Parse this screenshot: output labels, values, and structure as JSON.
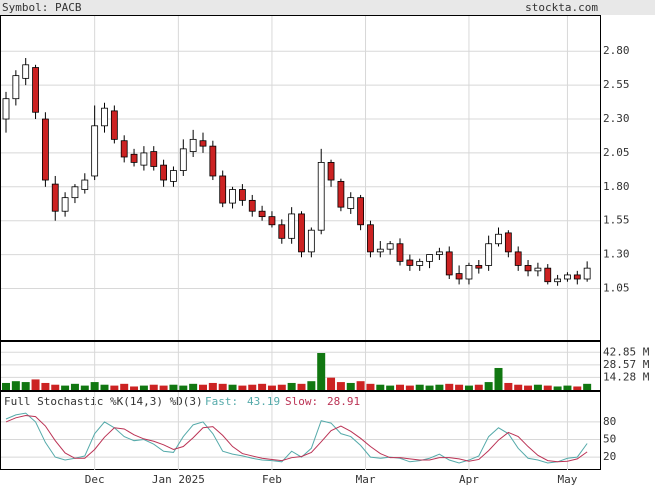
{
  "chart_data": {
    "type": "candlestick",
    "symbol": "Symbol: PACB",
    "site": "stockta.com",
    "x_labels": [
      {
        "index": 9,
        "label": "Dec"
      },
      {
        "index": 17.5,
        "label": "Jan 2025"
      },
      {
        "index": 27,
        "label": "Feb"
      },
      {
        "index": 36.5,
        "label": "Mar"
      },
      {
        "index": 47,
        "label": "Apr"
      },
      {
        "index": 57,
        "label": "May"
      }
    ],
    "open": [
      2.3,
      2.45,
      2.6,
      2.68,
      2.3,
      1.82,
      1.62,
      1.72,
      1.78,
      1.88,
      2.25,
      2.36,
      2.14,
      2.04,
      1.96,
      2.06,
      1.96,
      1.84,
      1.92,
      2.06,
      2.14,
      2.1,
      1.88,
      1.68,
      1.78,
      1.7,
      1.62,
      1.58,
      1.52,
      1.42,
      1.6,
      1.32,
      1.48,
      1.98,
      1.84,
      1.64,
      1.72,
      1.52,
      1.32,
      1.34,
      1.38,
      1.26,
      1.22,
      1.25,
      1.3,
      1.32,
      1.16,
      1.12,
      1.22,
      1.22,
      1.38,
      1.46,
      1.32,
      1.22,
      1.18,
      1.2,
      1.1,
      1.12,
      1.15,
      1.12
    ],
    "high": [
      2.5,
      2.66,
      2.75,
      2.7,
      2.35,
      1.88,
      1.76,
      1.82,
      1.9,
      2.4,
      2.42,
      2.4,
      2.18,
      2.08,
      2.1,
      2.1,
      2.0,
      1.95,
      2.15,
      2.22,
      2.2,
      2.14,
      1.92,
      1.8,
      1.82,
      1.74,
      1.66,
      1.62,
      1.56,
      1.65,
      1.62,
      1.5,
      2.08,
      2.0,
      1.86,
      1.76,
      1.74,
      1.55,
      1.4,
      1.4,
      1.42,
      1.3,
      1.27,
      1.3,
      1.35,
      1.36,
      1.22,
      1.24,
      1.26,
      1.44,
      1.5,
      1.48,
      1.36,
      1.26,
      1.24,
      1.23,
      1.15,
      1.17,
      1.18,
      1.25
    ],
    "low": [
      2.2,
      2.4,
      2.55,
      2.3,
      1.8,
      1.55,
      1.58,
      1.68,
      1.75,
      1.85,
      2.2,
      2.12,
      1.98,
      1.95,
      1.92,
      1.92,
      1.8,
      1.8,
      1.88,
      2.02,
      2.05,
      1.85,
      1.65,
      1.64,
      1.66,
      1.58,
      1.55,
      1.5,
      1.38,
      1.38,
      1.28,
      1.28,
      1.45,
      1.8,
      1.62,
      1.6,
      1.48,
      1.28,
      1.28,
      1.3,
      1.22,
      1.18,
      1.18,
      1.2,
      1.26,
      1.12,
      1.08,
      1.08,
      1.16,
      1.18,
      1.36,
      1.28,
      1.18,
      1.14,
      1.14,
      1.08,
      1.07,
      1.1,
      1.08,
      1.1
    ],
    "close": [
      2.45,
      2.62,
      2.7,
      2.35,
      1.85,
      1.62,
      1.72,
      1.8,
      1.85,
      2.25,
      2.38,
      2.15,
      2.02,
      1.98,
      2.05,
      1.95,
      1.85,
      1.92,
      2.08,
      2.15,
      2.1,
      1.88,
      1.68,
      1.78,
      1.7,
      1.62,
      1.58,
      1.52,
      1.42,
      1.6,
      1.32,
      1.48,
      1.98,
      1.85,
      1.65,
      1.72,
      1.52,
      1.32,
      1.34,
      1.38,
      1.25,
      1.22,
      1.25,
      1.3,
      1.32,
      1.15,
      1.12,
      1.22,
      1.2,
      1.38,
      1.45,
      1.32,
      1.22,
      1.18,
      1.2,
      1.1,
      1.12,
      1.15,
      1.12,
      1.2
    ],
    "up_color": "#ffffff",
    "down_color": "#cc2222",
    "ylim": [
      0.67,
      3.06
    ],
    "yticks": [
      {
        "value": 2.8,
        "label": "2.80"
      },
      2.55,
      {
        "value": 2.3,
        "label": "2.30"
      },
      2.05,
      {
        "value": 1.8,
        "label": "1.80"
      },
      1.55,
      {
        "value": 1.3,
        "label": "1.30"
      },
      1.05
    ],
    "volume": [
      8,
      10,
      9,
      12,
      8,
      6,
      5,
      7,
      5,
      9,
      6,
      5,
      7,
      4,
      5,
      6,
      5,
      6,
      5,
      7,
      6,
      8,
      7,
      6,
      5,
      6,
      7,
      5,
      6,
      8,
      7,
      10,
      42,
      14,
      9,
      8,
      10,
      7,
      6,
      5,
      6,
      5,
      6,
      5,
      6,
      7,
      6,
      5,
      6,
      9,
      25,
      8,
      6,
      5,
      6,
      5,
      4,
      5,
      4,
      7
    ],
    "volume_up_color": "#117711",
    "volume_down_color": "#cc2222",
    "vlim": [
      0,
      54.5
    ],
    "vticks": [
      {
        "value": 42.85,
        "label": "42.85 M"
      },
      {
        "value": 28.57,
        "label": "28.57 M"
      },
      {
        "value": 14.28,
        "label": "14.28 M"
      }
    ],
    "stochastic": {
      "title": "Full Stochastic %K(14,3) %D(3)",
      "series": [
        {
          "name": "Fast:",
          "color": "#55aaaa",
          "values": [
            85,
            92,
            95,
            80,
            45,
            20,
            15,
            18,
            22,
            60,
            80,
            70,
            55,
            48,
            50,
            42,
            30,
            28,
            55,
            75,
            80,
            60,
            30,
            25,
            22,
            18,
            15,
            14,
            12,
            30,
            20,
            35,
            82,
            78,
            60,
            55,
            40,
            20,
            18,
            20,
            18,
            12,
            14,
            18,
            25,
            15,
            10,
            15,
            22,
            55,
            70,
            60,
            35,
            18,
            15,
            10,
            12,
            18,
            20,
            43.19
          ]
        },
        {
          "name": "Slow:",
          "color": "#bb3355",
          "values": [
            80,
            87,
            91,
            89,
            73,
            48,
            27,
            18,
            18,
            33,
            54,
            70,
            68,
            58,
            51,
            47,
            41,
            33,
            38,
            53,
            70,
            72,
            57,
            38,
            26,
            22,
            18,
            16,
            14,
            19,
            21,
            28,
            46,
            65,
            73,
            64,
            52,
            38,
            26,
            19,
            19,
            17,
            15,
            15,
            19,
            19,
            17,
            13,
            16,
            31,
            49,
            62,
            55,
            38,
            23,
            14,
            12,
            13,
            17,
            28.91
          ]
        }
      ],
      "ylim": [
        -2,
        131
      ],
      "yticks": [
        80,
        50,
        20
      ]
    }
  }
}
